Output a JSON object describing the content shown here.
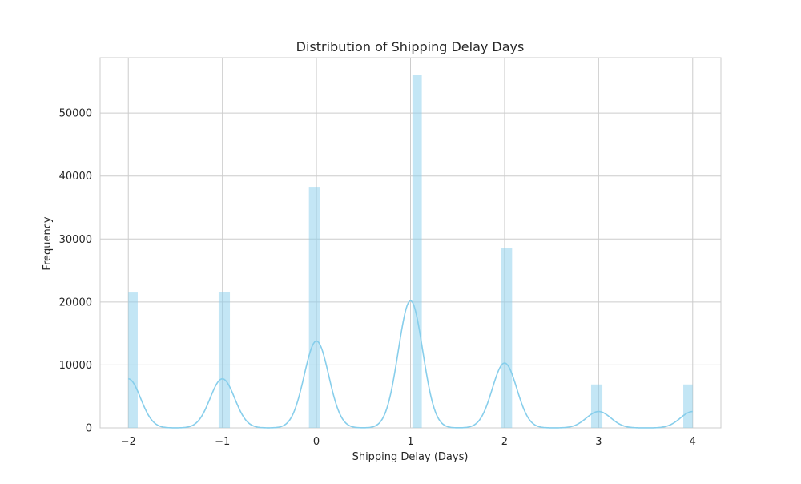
{
  "chart_data": {
    "type": "bar",
    "title": "Distribution of Shipping Delay Days",
    "xlabel": "Shipping Delay (Days)",
    "ylabel": "Frequency",
    "xlim": [
      -2.3,
      4.3
    ],
    "ylim": [
      0,
      58800
    ],
    "x_ticks": [
      -2,
      -1,
      0,
      1,
      2,
      3,
      4
    ],
    "x_tick_labels": [
      "−2",
      "−1",
      "0",
      "1",
      "2",
      "3",
      "4"
    ],
    "y_ticks": [
      0,
      10000,
      20000,
      30000,
      40000,
      50000
    ],
    "y_tick_labels": [
      "0",
      "10000",
      "20000",
      "30000",
      "40000",
      "50000"
    ],
    "grid": true,
    "bar_color": "#87ceeb",
    "bins": [
      {
        "x0": -2.0,
        "x1": -1.9,
        "value": 21500
      },
      {
        "x0": -1.04,
        "x1": -0.92,
        "value": 21600
      },
      {
        "x0": -0.08,
        "x1": 0.04,
        "value": 38300
      },
      {
        "x0": 1.02,
        "x1": 1.12,
        "value": 56000
      },
      {
        "x0": 1.96,
        "x1": 2.08,
        "value": 28600
      },
      {
        "x0": 2.92,
        "x1": 3.04,
        "value": 6900
      },
      {
        "x0": 3.9,
        "x1": 4.0,
        "value": 6900
      }
    ],
    "kde": {
      "name": "KDE",
      "color": "#87ceeb",
      "peaks": [
        {
          "x": -2,
          "y": 7800,
          "sigma": 0.13
        },
        {
          "x": -1,
          "y": 7800,
          "sigma": 0.13
        },
        {
          "x": 0,
          "y": 13800,
          "sigma": 0.13
        },
        {
          "x": 1,
          "y": 20200,
          "sigma": 0.13
        },
        {
          "x": 2,
          "y": 10300,
          "sigma": 0.13
        },
        {
          "x": 3,
          "y": 2600,
          "sigma": 0.13
        },
        {
          "x": 4,
          "y": 2600,
          "sigma": 0.13
        }
      ]
    }
  }
}
